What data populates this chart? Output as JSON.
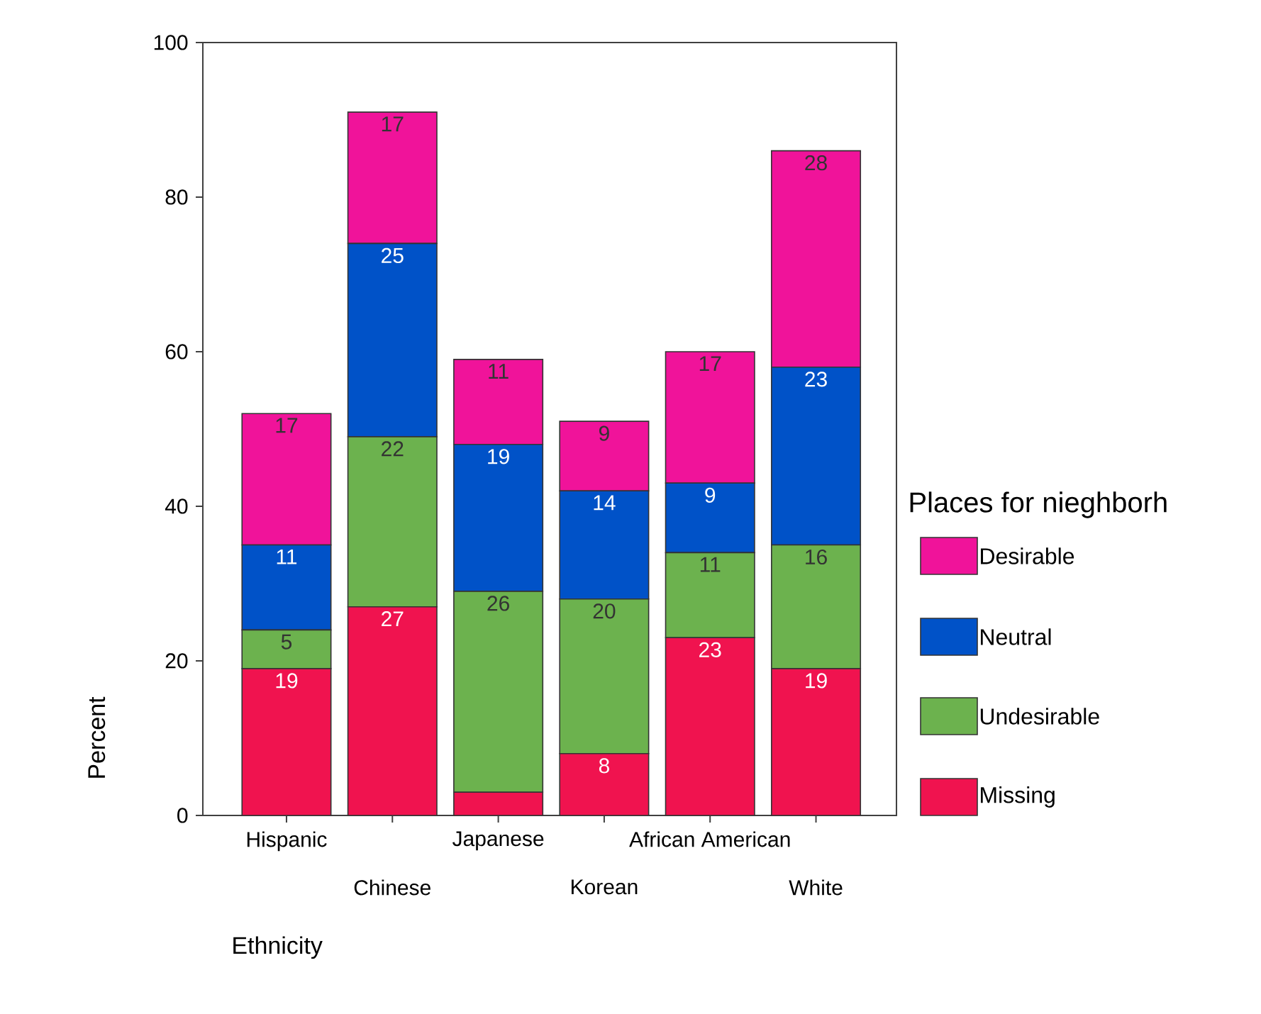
{
  "chart_data": {
    "type": "bar",
    "stacked": true,
    "categories": [
      "Hispanic",
      "Chinese",
      "Japanese",
      "Korean",
      "African American",
      "White"
    ],
    "series": [
      {
        "name": "Missing",
        "color": "#f0134f",
        "values": [
          19,
          27,
          3,
          8,
          23,
          19
        ],
        "value_labels": [
          "19",
          "27",
          null,
          "8",
          "23",
          "19"
        ]
      },
      {
        "name": "Undesirable",
        "color": "#6cb24e",
        "values": [
          5,
          22,
          26,
          20,
          11,
          16
        ],
        "value_labels": [
          "5",
          "22",
          "26",
          "20",
          "11",
          "16"
        ]
      },
      {
        "name": "Neutral",
        "color": "#0052c8",
        "values": [
          11,
          25,
          19,
          14,
          9,
          23
        ],
        "value_labels": [
          "11",
          "25",
          "19",
          "14",
          "9",
          "23"
        ]
      },
      {
        "name": "Desirable",
        "color": "#f0139a",
        "values": [
          17,
          17,
          11,
          9,
          17,
          28
        ],
        "value_labels": [
          "17",
          "17",
          "11",
          "9",
          "17",
          "28"
        ]
      }
    ],
    "ylim": [
      0,
      100
    ],
    "yticks": [
      0,
      20,
      40,
      60,
      80,
      100
    ],
    "xlabel": "Ethnicity",
    "ylabel": "Percent",
    "legend": "right",
    "legend_title": "Places for nieghborh"
  }
}
